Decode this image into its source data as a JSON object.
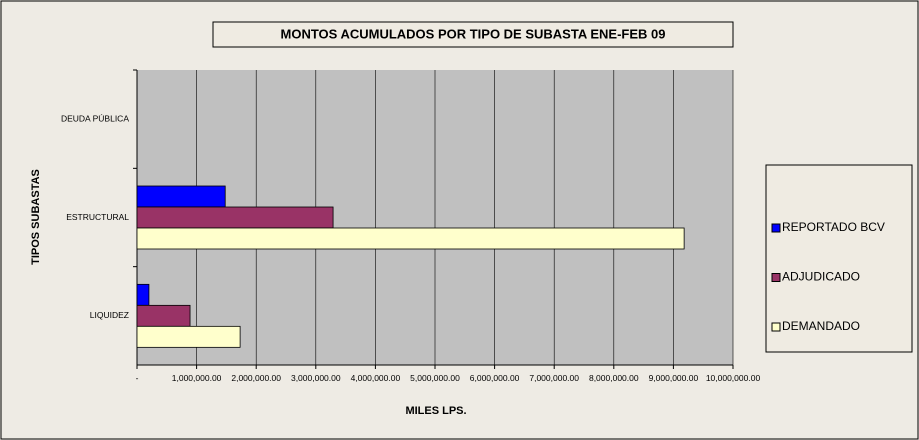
{
  "chart_data": {
    "type": "bar",
    "orientation": "horizontal",
    "title": "MONTOS ACUMULADOS POR TIPO DE SUBASTA ENE-FEB 09",
    "x_label": "MILES LPS.",
    "y_label": "TIPOS SUBASTAS",
    "categories": [
      "DEUDA PÚBLICA",
      "ESTRUCTURAL",
      "LIQUIDEZ"
    ],
    "series": [
      {
        "name": "REPORTADO BCV",
        "color": "#0000ff",
        "values": [
          0,
          1480000,
          200000
        ]
      },
      {
        "name": "ADJUDICADO",
        "color": "#993366",
        "values": [
          0,
          3290000,
          890000
        ]
      },
      {
        "name": "DEMANDADO",
        "color": "#ffffcc",
        "values": [
          0,
          9180000,
          1730000
        ]
      }
    ],
    "xlim": [
      0,
      10000000
    ],
    "xticks": [
      {
        "value": 0,
        "label": "-"
      },
      {
        "value": 1000000,
        "label": "1,000,000.00"
      },
      {
        "value": 2000000,
        "label": "2,000,000.00"
      },
      {
        "value": 3000000,
        "label": "3,000,000.00"
      },
      {
        "value": 4000000,
        "label": "4,000,000.00"
      },
      {
        "value": 5000000,
        "label": "5,000,000.00"
      },
      {
        "value": 6000000,
        "label": "6,000,000.00"
      },
      {
        "value": 7000000,
        "label": "7,000,000.00"
      },
      {
        "value": 8000000,
        "label": "8,000,000.00"
      },
      {
        "value": 9000000,
        "label": "9,000,000.00"
      },
      {
        "value": 10000000,
        "label": "10,000,000.00"
      }
    ],
    "grid": true,
    "legend": "right"
  }
}
